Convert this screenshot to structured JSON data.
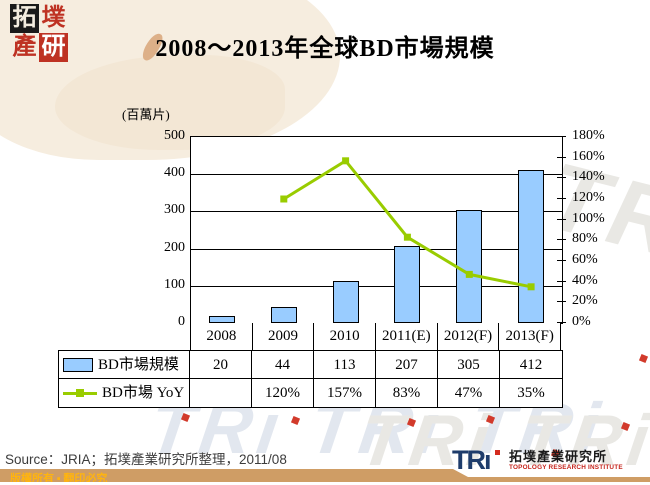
{
  "title": "2008～2013年全球BD市場規模",
  "chart_data": {
    "type": "combo-bar-line",
    "categories": [
      "2008",
      "2009",
      "2010",
      "2011(E)",
      "2012(F)",
      "2013(F)"
    ],
    "series": [
      {
        "name": "BD市場規模",
        "type": "bar",
        "values": [
          20,
          44,
          113,
          207,
          305,
          412
        ],
        "color": "#99CCFF"
      },
      {
        "name": "BD市場 YoY",
        "type": "line",
        "values": [
          null,
          120,
          157,
          83,
          47,
          35
        ],
        "unit": "%",
        "color": "#99CC00"
      }
    ],
    "left_axis": {
      "label": "(百萬片)",
      "min": 0,
      "max": 500,
      "ticks": [
        "500",
        "400",
        "300",
        "200",
        "100",
        "0"
      ]
    },
    "right_axis": {
      "min": 0,
      "max": 180,
      "ticks": [
        "180%",
        "160%",
        "140%",
        "120%",
        "100%",
        "80%",
        "60%",
        "40%",
        "20%",
        "0%"
      ]
    },
    "grid": "horizontal-only",
    "legend_position": "table-below-chart"
  },
  "data_table": {
    "rows": [
      {
        "label": "BD市場規模",
        "values": [
          "20",
          "44",
          "113",
          "207",
          "305",
          "412"
        ]
      },
      {
        "label": "BD市場 YoY",
        "values": [
          "",
          "120%",
          "157%",
          "83%",
          "47%",
          "35%"
        ]
      }
    ]
  },
  "footer": {
    "source": "Source：JRIA；拓墣產業研究所整理，2011/08",
    "copyright": "版權所有 ▪ 翻印必究"
  },
  "branding": {
    "seal_chars": [
      "拓",
      "墣",
      "產",
      "研"
    ],
    "tri_wordmark": "TRı",
    "tri_chinese": "拓墣產業研究所",
    "tri_english": "TOPOLOGY RESEARCH INSTITUTE",
    "watermark_text": "TRi TRi TRi"
  }
}
